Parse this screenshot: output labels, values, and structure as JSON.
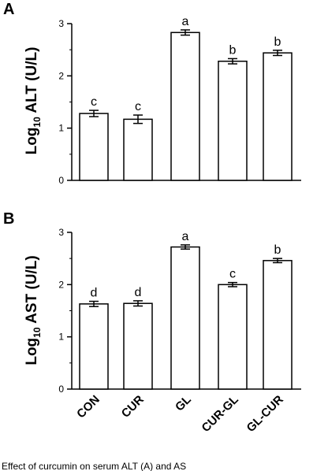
{
  "chart_data": [
    {
      "type": "bar",
      "panel_label": "A",
      "ylabel_prefix": "Log",
      "ylabel_sub": "10",
      "ylabel_rest": " ALT (U/L)",
      "ylim": [
        0,
        3
      ],
      "yticks": [
        "0",
        "1",
        "2",
        "3"
      ],
      "categories": [
        "CON",
        "CUR",
        "GL",
        "CUR-GL",
        "GL-CUR"
      ],
      "values": [
        1.28,
        1.17,
        2.83,
        2.28,
        2.44
      ],
      "errors": [
        0.06,
        0.08,
        0.05,
        0.05,
        0.05
      ],
      "sig_labels": [
        "c",
        "c",
        "a",
        "b",
        "b"
      ],
      "grid": false,
      "legend": "none"
    },
    {
      "type": "bar",
      "panel_label": "B",
      "ylabel_prefix": "Log",
      "ylabel_sub": "10",
      "ylabel_rest": " AST (U/L)",
      "ylim": [
        0,
        3
      ],
      "yticks": [
        "0",
        "1",
        "2",
        "3"
      ],
      "categories": [
        "CON",
        "CUR",
        "GL",
        "CUR-GL",
        "GL-CUR"
      ],
      "values": [
        1.63,
        1.64,
        2.72,
        2.0,
        2.46
      ],
      "errors": [
        0.05,
        0.05,
        0.04,
        0.04,
        0.04
      ],
      "sig_labels": [
        "d",
        "d",
        "a",
        "c",
        "b"
      ],
      "grid": false,
      "legend": "none"
    }
  ],
  "caption_fragment": "Effect of curcumin on serum ALT (A) and AS"
}
